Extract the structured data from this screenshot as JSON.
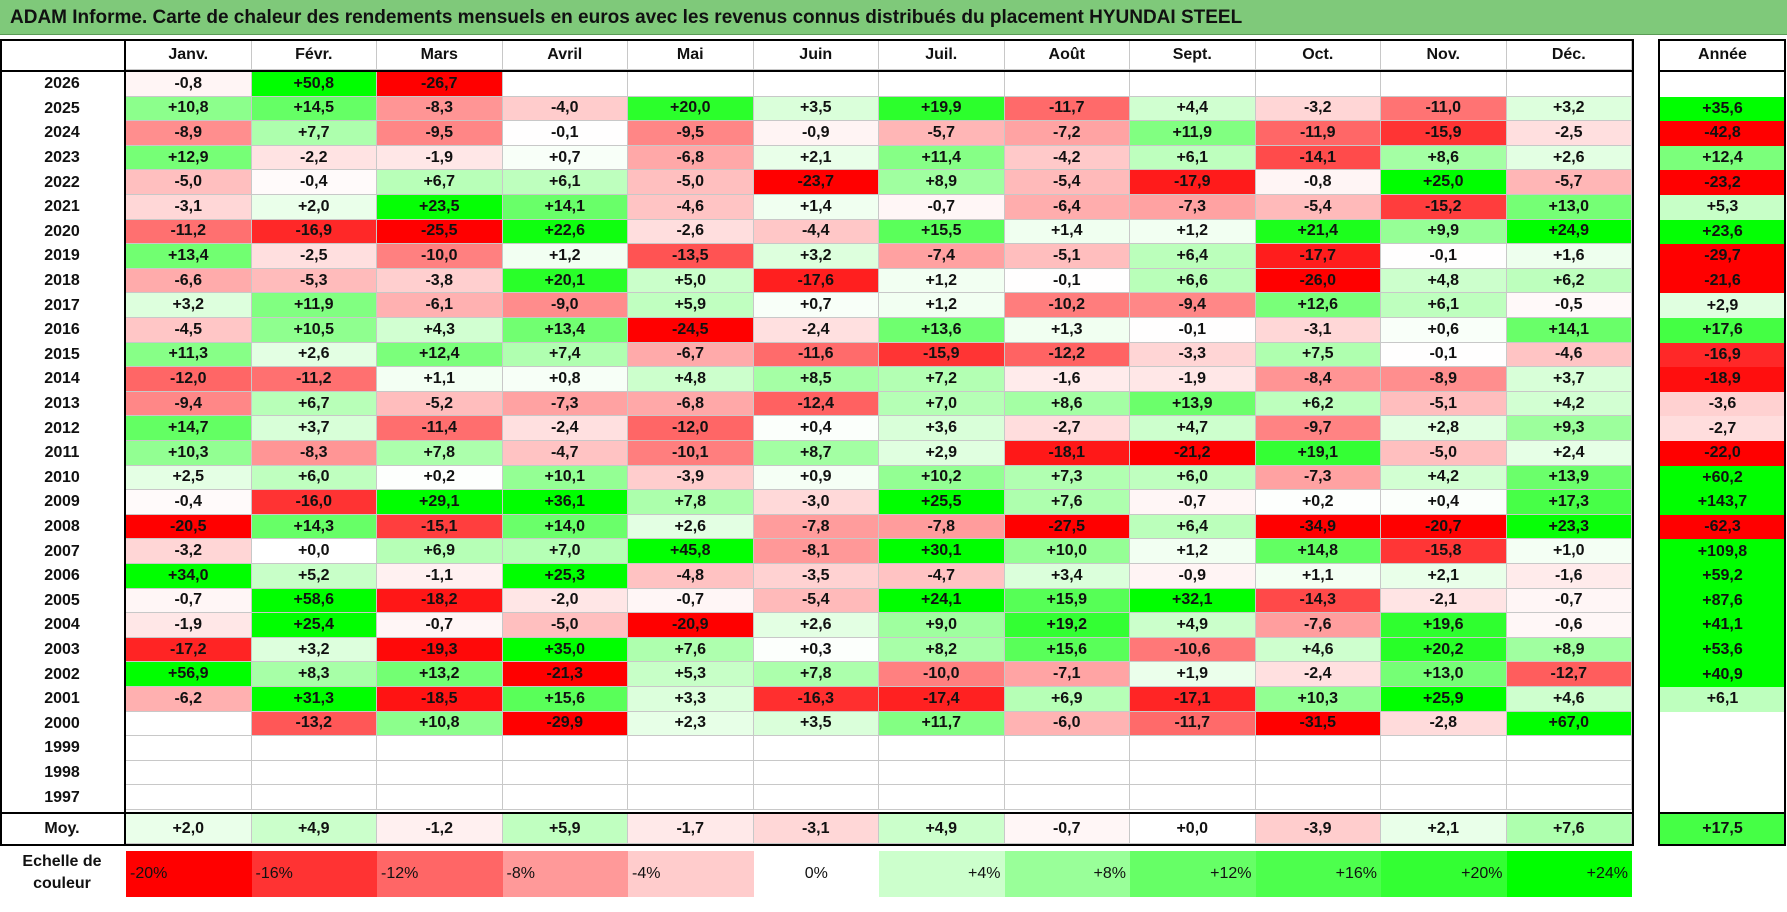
{
  "title": "ADAM Informe. Carte de chaleur des rendements mensuels en euros avec les revenus connus distribués du placement HYUNDAI STEEL",
  "chart_data": {
    "type": "heatmap",
    "title": "ADAM Informe. Carte de chaleur des rendements mensuels en euros avec les revenus connus distribués du placement HYUNDAI STEEL",
    "months": [
      "Janv.",
      "Févr.",
      "Mars",
      "Avril",
      "Mai",
      "Juin",
      "Juil.",
      "Août",
      "Sept.",
      "Oct.",
      "Nov.",
      "Déc."
    ],
    "year_header": "Année",
    "rows": [
      {
        "year": "2026",
        "values": [
          "-0,8",
          "+50,8",
          "-26,7",
          "",
          "",
          "",
          "",
          "",
          "",
          "",
          "",
          ""
        ],
        "annual": ""
      },
      {
        "year": "2025",
        "values": [
          "+10,8",
          "+14,5",
          "-8,3",
          "-4,0",
          "+20,0",
          "+3,5",
          "+19,9",
          "-11,7",
          "+4,4",
          "-3,2",
          "-11,0",
          "+3,2"
        ],
        "annual": "+35,6"
      },
      {
        "year": "2024",
        "values": [
          "-8,9",
          "+7,7",
          "-9,5",
          "-0,1",
          "-9,5",
          "-0,9",
          "-5,7",
          "-7,2",
          "+11,9",
          "-11,9",
          "-15,9",
          "-2,5"
        ],
        "annual": "-42,8"
      },
      {
        "year": "2023",
        "values": [
          "+12,9",
          "-2,2",
          "-1,9",
          "+0,7",
          "-6,8",
          "+2,1",
          "+11,4",
          "-4,2",
          "+6,1",
          "-14,1",
          "+8,6",
          "+2,6"
        ],
        "annual": "+12,4"
      },
      {
        "year": "2022",
        "values": [
          "-5,0",
          "-0,4",
          "+6,7",
          "+6,1",
          "-5,0",
          "-23,7",
          "+8,9",
          "-5,4",
          "-17,9",
          "-0,8",
          "+25,0",
          "-5,7"
        ],
        "annual": "-23,2"
      },
      {
        "year": "2021",
        "values": [
          "-3,1",
          "+2,0",
          "+23,5",
          "+14,1",
          "-4,6",
          "+1,4",
          "-0,7",
          "-6,4",
          "-7,3",
          "-5,4",
          "-15,2",
          "+13,0"
        ],
        "annual": "+5,3"
      },
      {
        "year": "2020",
        "values": [
          "-11,2",
          "-16,9",
          "-25,5",
          "+22,6",
          "-2,6",
          "-4,4",
          "+15,5",
          "+1,4",
          "+1,2",
          "+21,4",
          "+9,9",
          "+24,9"
        ],
        "annual": "+23,6"
      },
      {
        "year": "2019",
        "values": [
          "+13,4",
          "-2,5",
          "-10,0",
          "+1,2",
          "-13,5",
          "+3,2",
          "-7,4",
          "-5,1",
          "+6,4",
          "-17,7",
          "-0,1",
          "+1,6"
        ],
        "annual": "-29,7"
      },
      {
        "year": "2018",
        "values": [
          "-6,6",
          "-5,3",
          "-3,8",
          "+20,1",
          "+5,0",
          "-17,6",
          "+1,2",
          "-0,1",
          "+6,6",
          "-26,0",
          "+4,8",
          "+6,2"
        ],
        "annual": "-21,6"
      },
      {
        "year": "2017",
        "values": [
          "+3,2",
          "+11,9",
          "-6,1",
          "-9,0",
          "+5,9",
          "+0,7",
          "+1,2",
          "-10,2",
          "-9,4",
          "+12,6",
          "+6,1",
          "-0,5"
        ],
        "annual": "+2,9"
      },
      {
        "year": "2016",
        "values": [
          "-4,5",
          "+10,5",
          "+4,3",
          "+13,4",
          "-24,5",
          "-2,4",
          "+13,6",
          "+1,3",
          "-0,1",
          "-3,1",
          "+0,6",
          "+14,1"
        ],
        "annual": "+17,6"
      },
      {
        "year": "2015",
        "values": [
          "+11,3",
          "+2,6",
          "+12,4",
          "+7,4",
          "-6,7",
          "-11,6",
          "-15,9",
          "-12,2",
          "-3,3",
          "+7,5",
          "-0,1",
          "-4,6"
        ],
        "annual": "-16,9"
      },
      {
        "year": "2014",
        "values": [
          "-12,0",
          "-11,2",
          "+1,1",
          "+0,8",
          "+4,8",
          "+8,5",
          "+7,2",
          "-1,6",
          "-1,9",
          "-8,4",
          "-8,9",
          "+3,7"
        ],
        "annual": "-18,9"
      },
      {
        "year": "2013",
        "values": [
          "-9,4",
          "+6,7",
          "-5,2",
          "-7,3",
          "-6,8",
          "-12,4",
          "+7,0",
          "+8,6",
          "+13,9",
          "+6,2",
          "-5,1",
          "+4,2"
        ],
        "annual": "-3,6"
      },
      {
        "year": "2012",
        "values": [
          "+14,7",
          "+3,7",
          "-11,4",
          "-2,4",
          "-12,0",
          "+0,4",
          "+3,6",
          "-2,7",
          "+4,7",
          "-9,7",
          "+2,8",
          "+9,3"
        ],
        "annual": "-2,7"
      },
      {
        "year": "2011",
        "values": [
          "+10,3",
          "-8,3",
          "+7,8",
          "-4,7",
          "-10,1",
          "+8,7",
          "+2,9",
          "-18,1",
          "-21,2",
          "+19,1",
          "-5,0",
          "+2,4"
        ],
        "annual": "-22,0"
      },
      {
        "year": "2010",
        "values": [
          "+2,5",
          "+6,0",
          "+0,2",
          "+10,1",
          "-3,9",
          "+0,9",
          "+10,2",
          "+7,3",
          "+6,0",
          "-7,3",
          "+4,2",
          "+13,9"
        ],
        "annual": "+60,2"
      },
      {
        "year": "2009",
        "values": [
          "-0,4",
          "-16,0",
          "+29,1",
          "+36,1",
          "+7,8",
          "-3,0",
          "+25,5",
          "+7,6",
          "-0,7",
          "+0,2",
          "+0,4",
          "+17,3"
        ],
        "annual": "+143,7"
      },
      {
        "year": "2008",
        "values": [
          "-20,5",
          "+14,3",
          "-15,1",
          "+14,0",
          "+2,6",
          "-7,8",
          "-7,8",
          "-27,5",
          "+6,4",
          "-34,9",
          "-20,7",
          "+23,3"
        ],
        "annual": "-62,3"
      },
      {
        "year": "2007",
        "values": [
          "-3,2",
          "+0,0",
          "+6,9",
          "+7,0",
          "+45,8",
          "-8,1",
          "+30,1",
          "+10,0",
          "+1,2",
          "+14,8",
          "-15,8",
          "+1,0"
        ],
        "annual": "+109,8"
      },
      {
        "year": "2006",
        "values": [
          "+34,0",
          "+5,2",
          "-1,1",
          "+25,3",
          "-4,8",
          "-3,5",
          "-4,7",
          "+3,4",
          "-0,9",
          "+1,1",
          "+2,1",
          "-1,6"
        ],
        "annual": "+59,2"
      },
      {
        "year": "2005",
        "values": [
          "-0,7",
          "+58,6",
          "-18,2",
          "-2,0",
          "-0,7",
          "-5,4",
          "+24,1",
          "+15,9",
          "+32,1",
          "-14,3",
          "-2,1",
          "-0,7"
        ],
        "annual": "+87,6"
      },
      {
        "year": "2004",
        "values": [
          "-1,9",
          "+25,4",
          "-0,7",
          "-5,0",
          "-20,9",
          "+2,6",
          "+9,0",
          "+19,2",
          "+4,9",
          "-7,6",
          "+19,6",
          "-0,6"
        ],
        "annual": "+41,1"
      },
      {
        "year": "2003",
        "values": [
          "-17,2",
          "+3,2",
          "-19,3",
          "+35,0",
          "+7,6",
          "+0,3",
          "+8,2",
          "+15,6",
          "-10,6",
          "+4,6",
          "+20,2",
          "+8,9"
        ],
        "annual": "+53,6"
      },
      {
        "year": "2002",
        "values": [
          "+56,9",
          "+8,3",
          "+13,2",
          "-21,3",
          "+5,3",
          "+7,8",
          "-10,0",
          "-7,1",
          "+1,9",
          "-2,4",
          "+13,0",
          "-12,7"
        ],
        "annual": "+40,9"
      },
      {
        "year": "2001",
        "values": [
          "-6,2",
          "+31,3",
          "-18,5",
          "+15,6",
          "+3,3",
          "-16,3",
          "-17,4",
          "+6,9",
          "-17,1",
          "+10,3",
          "+25,9",
          "+4,6"
        ],
        "annual": "+6,1"
      },
      {
        "year": "2000",
        "values": [
          "",
          "-13,2",
          "+10,8",
          "-29,9",
          "+2,3",
          "+3,5",
          "+11,7",
          "-6,0",
          "-11,7",
          "-31,5",
          "-2,8",
          "+67,0"
        ],
        "annual": ""
      },
      {
        "year": "1999",
        "values": [
          "",
          "",
          "",
          "",
          "",
          "",
          "",
          "",
          "",
          "",
          "",
          ""
        ],
        "annual": ""
      },
      {
        "year": "1998",
        "values": [
          "",
          "",
          "",
          "",
          "",
          "",
          "",
          "",
          "",
          "",
          "",
          ""
        ],
        "annual": ""
      },
      {
        "year": "1997",
        "values": [
          "",
          "",
          "",
          "",
          "",
          "",
          "",
          "",
          "",
          "",
          "",
          ""
        ],
        "annual": ""
      }
    ],
    "average": {
      "label": "Moy.",
      "values": [
        "+2,0",
        "+4,9",
        "-1,2",
        "+5,9",
        "-1,7",
        "-3,1",
        "+4,9",
        "-0,7",
        "+0,0",
        "-3,9",
        "+2,1",
        "+7,6"
      ],
      "annual": "+17,5"
    },
    "color_scale": {
      "label_line1": "Echelle de",
      "label_line2": "couleur",
      "stops": [
        {
          "label": "-20%",
          "value": -20,
          "color": "#ff0000"
        },
        {
          "label": "-16%",
          "value": -16,
          "color": "#ff3333"
        },
        {
          "label": "-12%",
          "value": -12,
          "color": "#ff6666"
        },
        {
          "label": "-8%",
          "value": -8,
          "color": "#ff9999"
        },
        {
          "label": "-4%",
          "value": -4,
          "color": "#ffcccc"
        },
        {
          "label": "0%",
          "value": 0,
          "color": "#ffffff"
        },
        {
          "label": "+4%",
          "value": 4,
          "color": "#ccffcc"
        },
        {
          "label": "+8%",
          "value": 8,
          "color": "#99ff99"
        },
        {
          "label": "+12%",
          "value": 12,
          "color": "#66ff66"
        },
        {
          "label": "+16%",
          "value": 16,
          "color": "#4dff4d"
        },
        {
          "label": "+20%",
          "value": 20,
          "color": "#33ff33"
        },
        {
          "label": "+24%",
          "value": 24,
          "color": "#00ff00"
        }
      ]
    }
  }
}
